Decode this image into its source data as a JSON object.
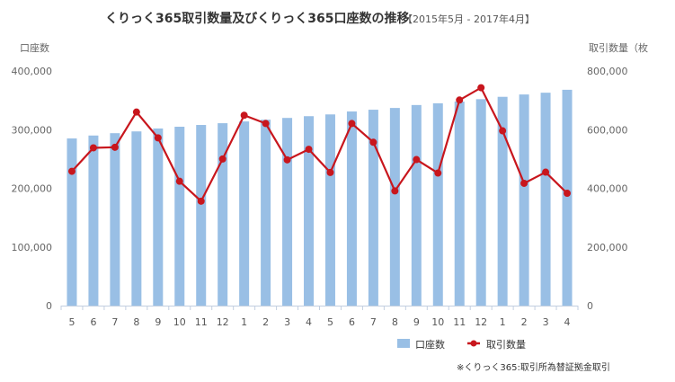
{
  "chart_data": {
    "type": "bar+line",
    "title": "くりっく365取引数量及びくりっく365口座数の推移",
    "subtitle": "【2015年5月 - 2017年4月】",
    "y_left_label": "口座数",
    "y_right_label": "取引数量（枚",
    "y_left_ticks": [
      "0",
      "100,000",
      "200,000",
      "300,000",
      "400,000"
    ],
    "y_right_ticks": [
      "0",
      "200,000",
      "400,000",
      "600,000",
      "800,000"
    ],
    "ylim_left": [
      0,
      400000
    ],
    "ylim_right": [
      0,
      800000
    ],
    "categories": [
      "5",
      "6",
      "7",
      "8",
      "9",
      "10",
      "11",
      "12",
      "1",
      "2",
      "3",
      "4",
      "5",
      "6",
      "7",
      "8",
      "9",
      "10",
      "11",
      "12",
      "1",
      "2",
      "3",
      "4"
    ],
    "series": [
      {
        "name": "口座数",
        "type": "bar",
        "axis": "left",
        "color": "#99bfe5",
        "values": [
          285000,
          290000,
          294000,
          297000,
          302000,
          305000,
          308000,
          311000,
          314000,
          317000,
          320000,
          323000,
          326000,
          331000,
          334000,
          337000,
          342000,
          345000,
          348000,
          352000,
          356000,
          360000,
          363000,
          368000
        ]
      },
      {
        "name": "取引数量",
        "type": "line",
        "axis": "right",
        "color": "#c8161d",
        "values": [
          458000,
          538000,
          540000,
          660000,
          572000,
          424000,
          356000,
          500000,
          649000,
          621000,
          497000,
          533000,
          454000,
          621000,
          557000,
          391000,
          498000,
          452000,
          701000,
          743000,
          596000,
          417000,
          455000,
          383000
        ]
      }
    ],
    "legend_position": "bottom-right",
    "note": "※くりっく365:取引所為替証拠金取引"
  }
}
